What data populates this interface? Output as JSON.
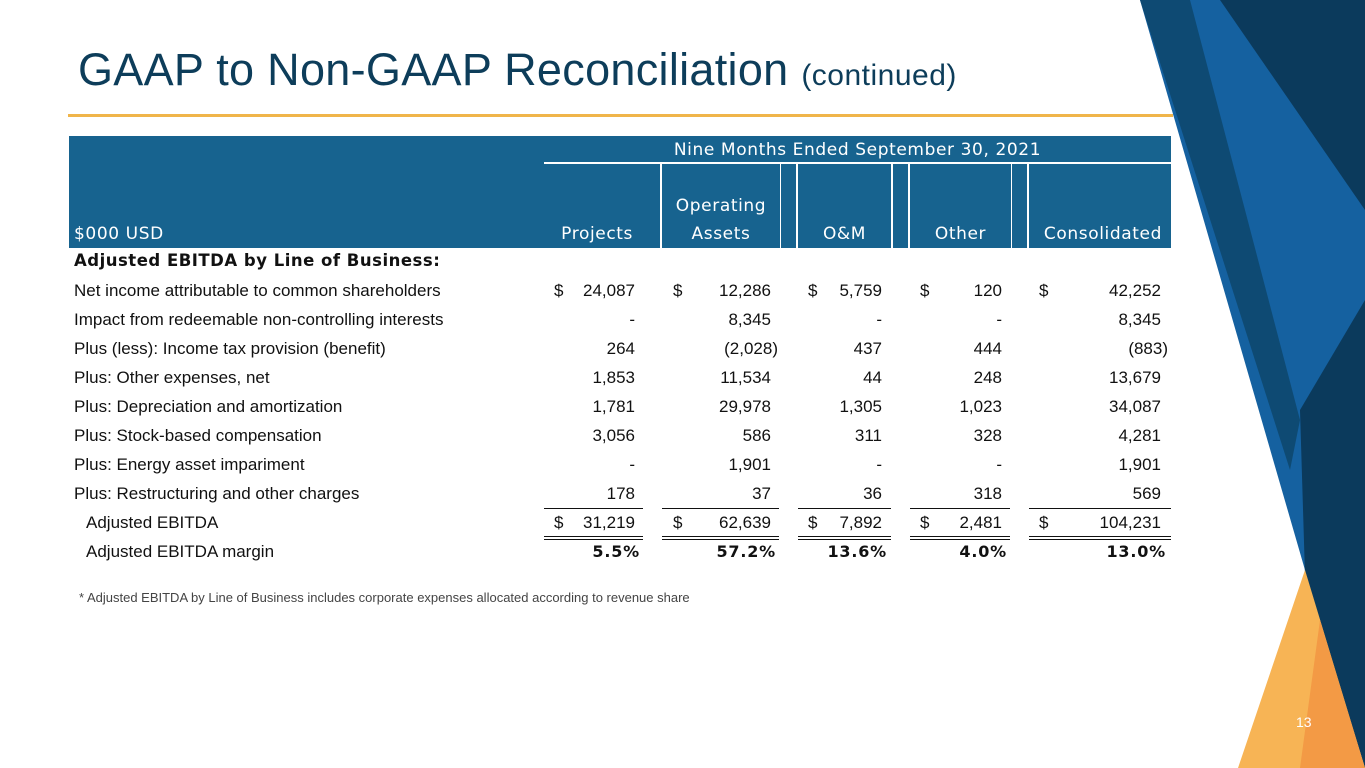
{
  "slide": {
    "title": "GAAP to Non-GAAP Reconciliation",
    "title_suffix": "(continued)",
    "footnote": "* Adjusted EBITDA by Line of Business includes corporate expenses allocated according to revenue share",
    "page_number": "13"
  },
  "colors": {
    "title": "#0d3d5a",
    "header_fill": "#17638f",
    "accent_rule": "#f0b54a",
    "deco_navy": "#0b3a5c",
    "deco_blue": "#1561a0",
    "deco_orange": "#f5a94a"
  },
  "table": {
    "period_header": "Nine Months Ended September 30, 2021",
    "unit_label": "$000 USD",
    "columns": [
      {
        "label_line1": "",
        "label_line2": "Projects"
      },
      {
        "label_line1": "Operating",
        "label_line2": "Assets"
      },
      {
        "label_line1": "",
        "label_line2": "O&M"
      },
      {
        "label_line1": "",
        "label_line2": "Other"
      },
      {
        "label_line1": "",
        "label_line2": "Consolidated"
      }
    ],
    "section_label": "Adjusted EBITDA by Line of Business:",
    "rows": [
      {
        "label": "Net income attributable to common shareholders",
        "currency": "$",
        "values": [
          "24,087",
          "12,286",
          "5,759",
          "120",
          "42,252"
        ]
      },
      {
        "label": "Impact from redeemable non-controlling interests",
        "values": [
          "-",
          "8,345",
          "-",
          "-",
          "8,345"
        ]
      },
      {
        "label": "Plus (less): Income tax provision (benefit)",
        "values": [
          "264",
          "(2,028)",
          "437",
          "444",
          "(883)"
        ]
      },
      {
        "label": "Plus: Other expenses, net",
        "values": [
          "1,853",
          "11,534",
          "44",
          "248",
          "13,679"
        ]
      },
      {
        "label": "Plus: Depreciation and amortization",
        "values": [
          "1,781",
          "29,978",
          "1,305",
          "1,023",
          "34,087"
        ]
      },
      {
        "label": "Plus: Stock-based compensation",
        "values": [
          "3,056",
          "586",
          "311",
          "328",
          "4,281"
        ]
      },
      {
        "label": "Plus: Energy asset impariment",
        "values": [
          "-",
          "1,901",
          "-",
          "-",
          "1,901"
        ]
      },
      {
        "label": "Plus: Restructuring and other charges",
        "values": [
          "178",
          "37",
          "36",
          "318",
          "569"
        ]
      }
    ],
    "total_row": {
      "label": "Adjusted EBITDA",
      "currency": "$",
      "values": [
        "31,219",
        "62,639",
        "7,892",
        "2,481",
        "104,231"
      ]
    },
    "margin_row": {
      "label": "Adjusted EBITDA margin",
      "values": [
        "5.5%",
        "57.2%",
        "13.6%",
        "4.0%",
        "13.0%"
      ]
    }
  }
}
